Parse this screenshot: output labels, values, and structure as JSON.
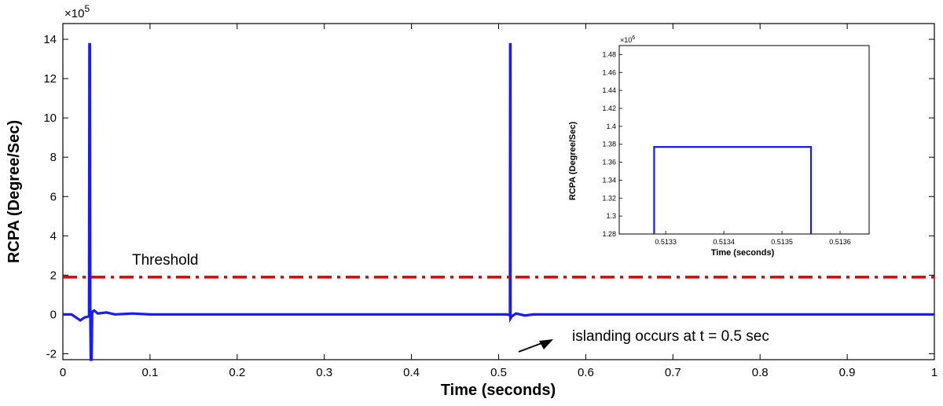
{
  "chart_data": [
    {
      "type": "line",
      "xlabel": "Time (seconds)",
      "ylabel": "RCPA (Degree/Sec)",
      "y_multiplier": "×10",
      "y_multiplier_exp": "5",
      "xlim": [
        0,
        1
      ],
      "ylim": [
        -2.3,
        14.8
      ],
      "x_ticks": [
        "0",
        "0.1",
        "0.2",
        "0.3",
        "0.4",
        "0.5",
        "0.6",
        "0.7",
        "0.8",
        "0.9",
        "1"
      ],
      "y_ticks": [
        "-2",
        "0",
        "2",
        "4",
        "6",
        "8",
        "10",
        "12",
        "14"
      ],
      "grid": false,
      "series": [
        {
          "name": "RCPA",
          "color": "#1a1aff",
          "x": [
            0,
            0.01,
            0.015,
            0.02,
            0.025,
            0.03,
            0.0305,
            0.031,
            0.0315,
            0.032,
            0.033,
            0.0335,
            0.034,
            0.036,
            0.04,
            0.05,
            0.06,
            0.08,
            0.1,
            0.5,
            0.51,
            0.513,
            0.5133,
            0.5135,
            0.5136,
            0.515,
            0.52,
            0.53,
            0.54,
            1.0
          ],
          "values": [
            0,
            0,
            -0.15,
            -0.3,
            -0.15,
            -0.1,
            13.75,
            13.75,
            -0.1,
            -2.3,
            -2.3,
            0,
            0.15,
            0.2,
            0.05,
            0.1,
            0.0,
            0.05,
            0,
            0,
            0,
            -0.05,
            13.75,
            13.75,
            -0.2,
            -0.1,
            0.05,
            -0.05,
            0,
            0
          ]
        },
        {
          "name": "Threshold",
          "color": "#e00000",
          "style": "dash-dot",
          "x": [
            0,
            1
          ],
          "values": [
            1.9,
            1.9
          ]
        }
      ],
      "annotations": [
        {
          "text": "Threshold"
        },
        {
          "text": "islanding occurs at t = 0.5 sec",
          "arrow_to": [
            0.52,
            -1.6
          ]
        }
      ]
    },
    {
      "type": "line",
      "role": "inset",
      "xlabel": "Time (seconds)",
      "ylabel": "RCPA (Degree/Sec)",
      "y_multiplier": "×10",
      "y_multiplier_exp": "6",
      "xlim": [
        0.51322,
        0.51365
      ],
      "ylim": [
        1.28,
        1.49
      ],
      "x_ticks": [
        "0.5133",
        "0.5134",
        "0.5135",
        "0.5136"
      ],
      "x_tick_values": [
        0.5133,
        0.5134,
        0.5135,
        0.5136
      ],
      "y_ticks": [
        "1.28",
        "1.3",
        "1.32",
        "1.34",
        "1.36",
        "1.38",
        "1.4",
        "1.42",
        "1.44",
        "1.46",
        "1.48"
      ],
      "series": [
        {
          "name": "RCPA",
          "color": "#1a1aff",
          "x": [
            0.51328,
            0.51328,
            0.51355,
            0.51355
          ],
          "values": [
            1.28,
            1.377,
            1.377,
            1.28
          ]
        }
      ]
    }
  ]
}
